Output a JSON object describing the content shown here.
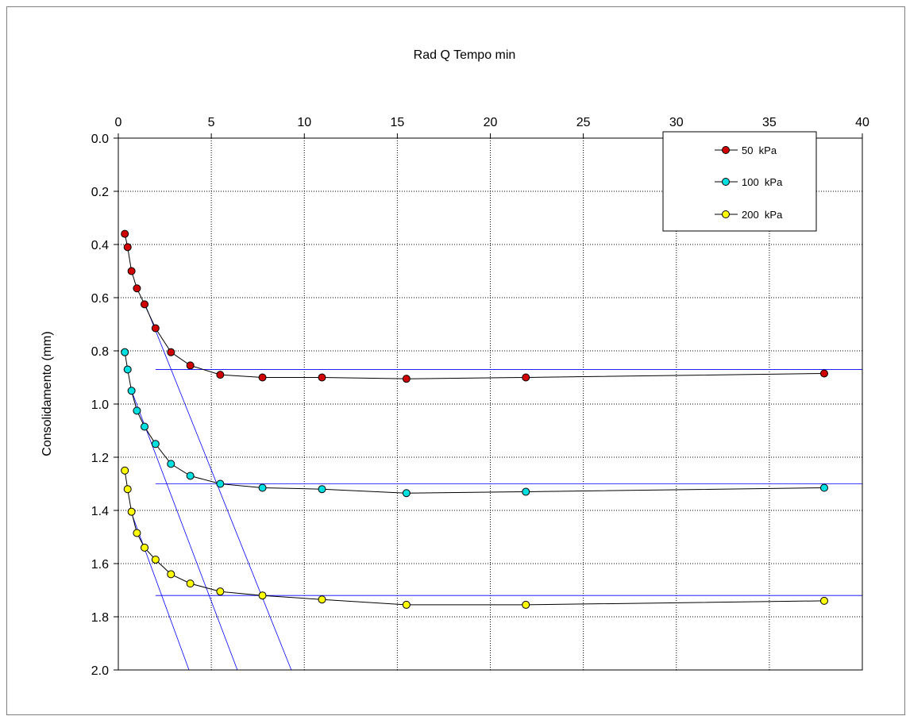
{
  "chart_data": {
    "type": "scatter",
    "title": "Rad Q Tempo min",
    "xlabel": "",
    "ylabel": "Consolidamento (mm)",
    "xlim": [
      0,
      40
    ],
    "ylim": [
      0,
      2.0
    ],
    "y_inverted": true,
    "x_axis_position": "top",
    "x_ticks": [
      "0",
      "5",
      "10",
      "15",
      "20",
      "25",
      "30",
      "35",
      "40"
    ],
    "y_ticks": [
      "0.0",
      "0.2",
      "0.4",
      "0.6",
      "0.8",
      "1.0",
      "1.2",
      "1.4",
      "1.6",
      "1.8",
      "2.0"
    ],
    "grid": true,
    "legend_position": "top-right",
    "series": [
      {
        "name": "50  kPa",
        "color": "#d00000",
        "x": [
          0.35,
          0.5,
          0.71,
          1.0,
          1.41,
          2.0,
          2.83,
          3.87,
          5.48,
          7.75,
          10.95,
          15.49,
          21.91,
          37.95
        ],
        "y": [
          0.36,
          0.41,
          0.5,
          0.565,
          0.625,
          0.715,
          0.805,
          0.855,
          0.89,
          0.9,
          0.9,
          0.905,
          0.9,
          0.885
        ]
      },
      {
        "name": "100  kPa",
        "color": "#00e0e0",
        "x": [
          0.35,
          0.5,
          0.71,
          1.0,
          1.41,
          2.0,
          2.83,
          3.87,
          5.48,
          7.75,
          10.95,
          15.49,
          21.91,
          37.95
        ],
        "y": [
          0.805,
          0.87,
          0.95,
          1.025,
          1.085,
          1.15,
          1.225,
          1.27,
          1.3,
          1.315,
          1.32,
          1.335,
          1.33,
          1.315
        ]
      },
      {
        "name": "200  kPa",
        "color": "#ffff00",
        "x": [
          0.35,
          0.5,
          0.71,
          1.0,
          1.41,
          2.0,
          2.83,
          3.87,
          5.48,
          7.75,
          10.95,
          15.49,
          21.91,
          37.95
        ],
        "y": [
          1.25,
          1.32,
          1.405,
          1.485,
          1.54,
          1.585,
          1.64,
          1.675,
          1.705,
          1.72,
          1.735,
          1.755,
          1.755,
          1.74
        ]
      }
    ],
    "construction_lines": [
      {
        "x": [
          2.0,
          40
        ],
        "y": [
          0.87,
          0.87
        ]
      },
      {
        "x": [
          2.0,
          40
        ],
        "y": [
          1.3,
          1.3
        ]
      },
      {
        "x": [
          2.0,
          40
        ],
        "y": [
          1.72,
          1.72
        ]
      },
      {
        "x": [
          1.41,
          9.3
        ],
        "y": [
          0.62,
          2.0
        ]
      },
      {
        "x": [
          0.71,
          6.4
        ],
        "y": [
          0.95,
          2.0
        ]
      },
      {
        "x": [
          0.71,
          3.8
        ],
        "y": [
          1.41,
          2.0
        ]
      }
    ],
    "construction_line_color": "#0000ff",
    "marker_edge_color": "#000000",
    "line_color": "#000000"
  }
}
